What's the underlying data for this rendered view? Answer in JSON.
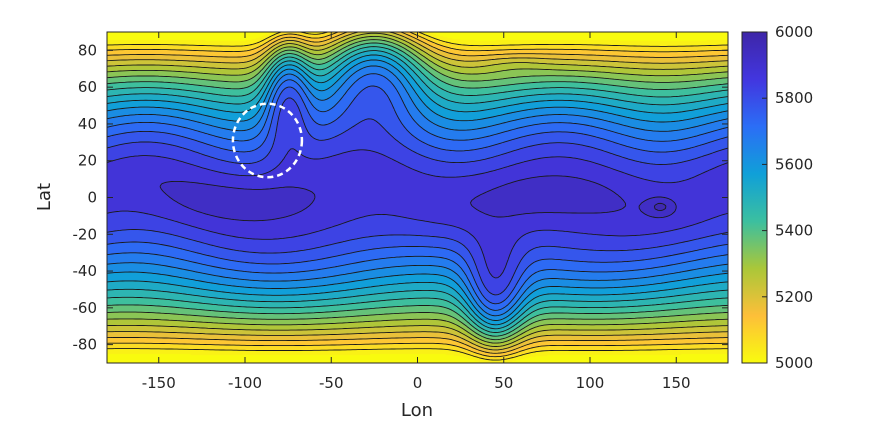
{
  "chart_data": {
    "type": "heatmap",
    "subtype": "filled-contour",
    "title": "",
    "xlabel": "Lon",
    "ylabel": "Lat",
    "xlim": [
      -180,
      180
    ],
    "ylim": [
      -90,
      90
    ],
    "x_ticks": [
      -150,
      -100,
      -50,
      0,
      50,
      100,
      150
    ],
    "y_ticks": [
      80,
      60,
      40,
      20,
      0,
      -20,
      -40,
      -60,
      -80
    ],
    "colorbar": {
      "range": [
        5000,
        6000
      ],
      "ticks": [
        6000,
        5800,
        5600,
        5400,
        5200,
        5000
      ],
      "colormap": [
        "#f9fb0e",
        "#fdbf39",
        "#aac739",
        "#3bbfa0",
        "#10a0d8",
        "#2b6ef6",
        "#4236df",
        "#3e26a8"
      ]
    },
    "contour_interval": 50,
    "field_features": {
      "equatorial_plateau_max": 5900,
      "local_max_near": {
        "lon": 141,
        "lat": -5,
        "value": 5980
      },
      "ridge_troughs": [
        {
          "lon": -75,
          "lat_center": 55,
          "lon_width": 26
        },
        {
          "lon": -25,
          "lat_center": 68,
          "lon_width": 55
        },
        {
          "lon": 45,
          "lat_center": -50,
          "lon_width": 32
        }
      ],
      "polar_high_near": {
        "lon": 55,
        "lat": 73,
        "value": 5040
      }
    },
    "annotation": {
      "shape": "dashed-circle",
      "color": "#ffffff",
      "center": {
        "lon": -87,
        "lat": 31
      },
      "radius_deg": 20
    }
  }
}
